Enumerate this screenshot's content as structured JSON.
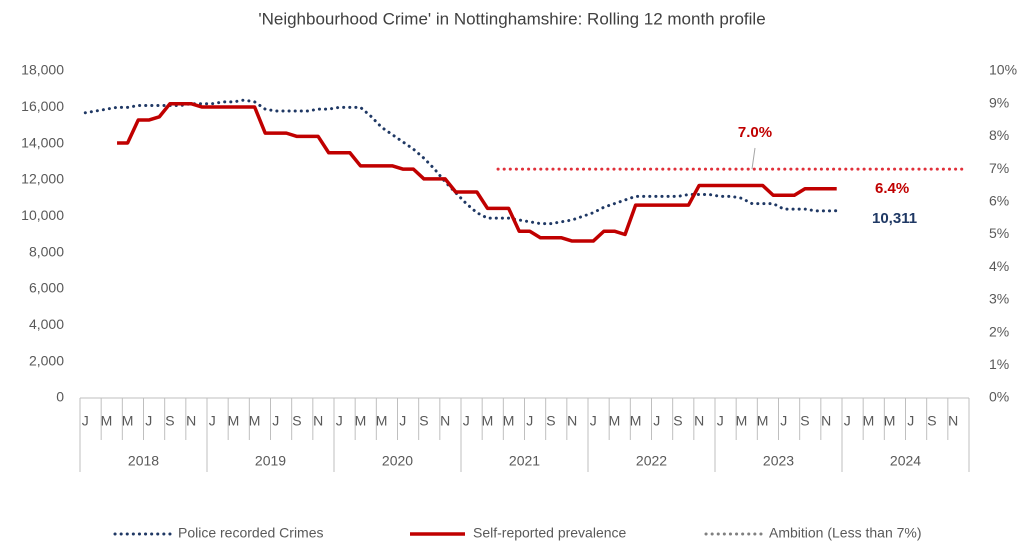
{
  "chart_data": {
    "type": "line",
    "title": "'Neighbourhood Crime' in Nottinghamshire: Rolling 12 month profile",
    "categories": [
      "J",
      null,
      "M",
      null,
      "M",
      null,
      "J",
      null,
      "S",
      null,
      "N",
      null,
      "J",
      null,
      "M",
      null,
      "M",
      null,
      "J",
      null,
      "S",
      null,
      "N",
      null,
      "J",
      null,
      "M",
      null,
      "M",
      null,
      "J",
      null,
      "S",
      null,
      "N",
      null,
      "J",
      null,
      "M",
      null,
      "M",
      null,
      "J",
      null,
      "S",
      null,
      "N",
      null,
      "J",
      null,
      "M",
      null,
      "M",
      null,
      "J",
      null,
      "S",
      null,
      "N",
      null,
      "J",
      null,
      "M",
      null,
      "M",
      null,
      "J",
      null,
      "S",
      null,
      "N",
      null,
      "J",
      null,
      "M",
      null,
      "M",
      null,
      "J",
      null,
      "S",
      null,
      "N",
      null
    ],
    "year_groups": [
      "2018",
      "2019",
      "2020",
      "2021",
      "2022",
      "2023",
      "2024"
    ],
    "series": [
      {
        "name": "Police recorded Crimes",
        "color": "#1f3864",
        "style": "dotted",
        "axis": "y",
        "values": [
          15700,
          15800,
          15900,
          16000,
          16000,
          16100,
          16100,
          16100,
          16100,
          16100,
          16200,
          16200,
          16200,
          16300,
          16300,
          16400,
          16300,
          15900,
          15800,
          15800,
          15800,
          15800,
          15900,
          15900,
          16000,
          16000,
          16000,
          15500,
          14900,
          14500,
          14100,
          13700,
          13200,
          12600,
          11900,
          11300,
          10700,
          10200,
          9900,
          9900,
          9900,
          9800,
          9700,
          9600,
          9600,
          9700,
          9800,
          10000,
          10200,
          10500,
          10700,
          10900,
          11100,
          11100,
          11100,
          11100,
          11100,
          11200,
          11200,
          11200,
          11100,
          11100,
          11000,
          10700,
          10700,
          10700,
          10400,
          10400,
          10400,
          10300,
          10300,
          10311,
          null,
          null,
          null,
          null,
          null,
          null,
          null,
          null,
          null,
          null,
          null,
          null
        ]
      },
      {
        "name": "Self-reported prevalence",
        "color": "#c00000",
        "style": "solid",
        "axis": "y2",
        "values": [
          null,
          null,
          null,
          7.8,
          7.8,
          8.5,
          8.5,
          8.6,
          9.0,
          9.0,
          9.0,
          8.9,
          8.9,
          8.9,
          8.9,
          8.9,
          8.9,
          8.1,
          8.1,
          8.1,
          8.0,
          8.0,
          8.0,
          7.5,
          7.5,
          7.5,
          7.1,
          7.1,
          7.1,
          7.1,
          7.0,
          7.0,
          6.7,
          6.7,
          6.7,
          6.3,
          6.3,
          6.3,
          5.8,
          5.8,
          5.8,
          5.1,
          5.1,
          4.9,
          4.9,
          4.9,
          4.8,
          4.8,
          4.8,
          5.1,
          5.1,
          5.0,
          5.9,
          5.9,
          5.9,
          5.9,
          5.9,
          5.9,
          6.5,
          6.5,
          6.5,
          6.5,
          6.5,
          6.5,
          6.5,
          6.2,
          6.2,
          6.2,
          6.4,
          6.4,
          6.4,
          6.4,
          null,
          null,
          null,
          null,
          null,
          null,
          null,
          null,
          null,
          null,
          null,
          null
        ]
      },
      {
        "name": "Ambition (Less than 7%)",
        "color": "#e0303a",
        "legend_color": "#808080",
        "style": "dotted",
        "axis": "y2",
        "values": [
          null,
          null,
          null,
          null,
          null,
          null,
          null,
          null,
          null,
          null,
          null,
          null,
          null,
          null,
          null,
          null,
          null,
          null,
          null,
          null,
          null,
          null,
          null,
          null,
          null,
          null,
          null,
          null,
          null,
          null,
          null,
          null,
          null,
          null,
          null,
          null,
          null,
          null,
          null,
          7,
          7,
          7,
          7,
          7,
          7,
          7,
          7,
          7,
          7,
          7,
          7,
          7,
          7,
          7,
          7,
          7,
          7,
          7,
          7,
          7,
          7,
          7,
          7,
          7,
          7,
          7,
          7,
          7,
          7,
          7,
          7,
          7,
          7,
          7,
          7,
          7,
          7,
          7,
          7,
          7,
          7,
          7,
          7,
          7
        ]
      }
    ],
    "annotations": [
      {
        "text": "7.0%",
        "color": "#c00000"
      },
      {
        "text": "6.4%",
        "color": "#c00000"
      },
      {
        "text": "10,311",
        "color": "#1f3864"
      }
    ],
    "ylim": [
      0,
      18000
    ],
    "yticks": [
      0,
      {
        "value": 2000,
        "label": "2,000"
      },
      {
        "value": 4000,
        "label": "4,000"
      },
      {
        "value": 6000,
        "label": "6,000"
      },
      {
        "value": 8000,
        "label": "8,000"
      },
      {
        "value": 10000,
        "label": "10,000"
      },
      {
        "value": 12000,
        "label": "12,000"
      },
      {
        "value": 14000,
        "label": "14,000"
      },
      {
        "value": 16000,
        "label": "16,000"
      },
      {
        "value": 18000,
        "label": "18,000"
      }
    ],
    "y2lim": [
      0,
      10
    ],
    "y2ticks": [
      {
        "value": 0,
        "label": "0%"
      },
      {
        "value": 1,
        "label": "1%"
      },
      {
        "value": 2,
        "label": "2%"
      },
      {
        "value": 3,
        "label": "3%"
      },
      {
        "value": 4,
        "label": "4%"
      },
      {
        "value": 5,
        "label": "5%"
      },
      {
        "value": 6,
        "label": "6%"
      },
      {
        "value": 7,
        "label": "7%"
      },
      {
        "value": 8,
        "label": "8%"
      },
      {
        "value": 9,
        "label": "9%"
      },
      {
        "value": 10,
        "label": "10%"
      }
    ],
    "grid": false,
    "legend": "bottom"
  }
}
